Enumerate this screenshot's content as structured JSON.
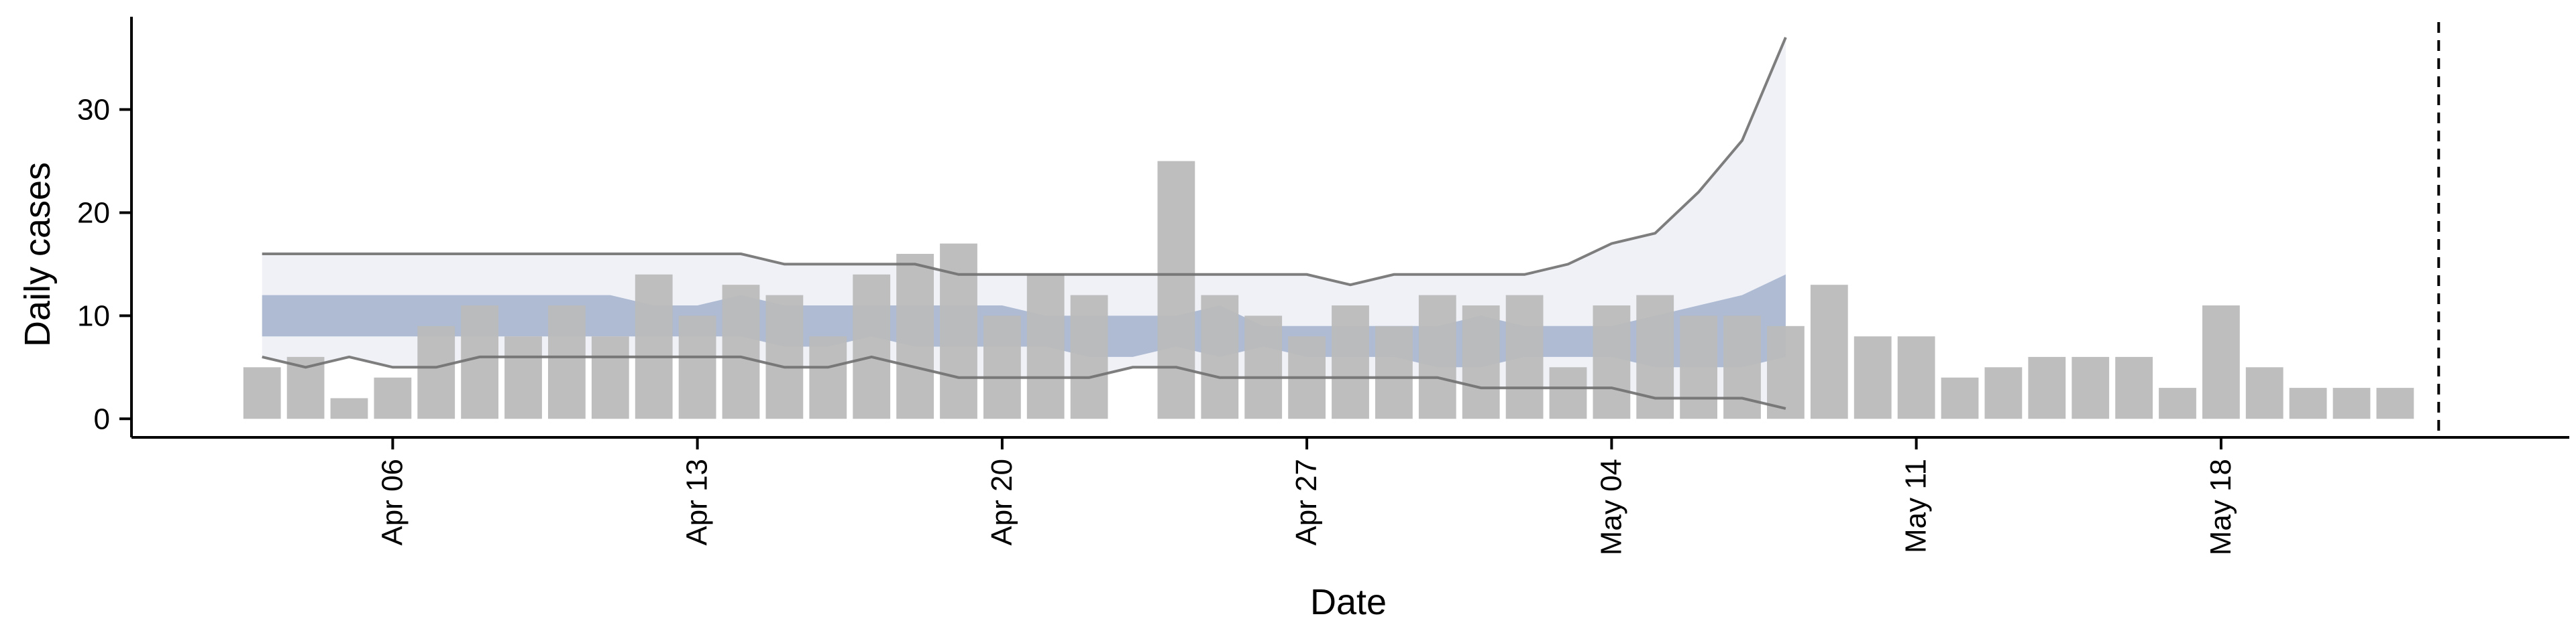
{
  "chart_data": {
    "type": "bar",
    "xlabel": "Date",
    "ylabel": "Daily cases",
    "xlim": [
      "2020-03-31",
      "2020-05-26"
    ],
    "ylim": [
      -1.8,
      39
    ],
    "grid": false,
    "legend": "none",
    "x_ticks": [
      {
        "date": "2020-04-06",
        "label": "Apr 06"
      },
      {
        "date": "2020-04-13",
        "label": "Apr 13"
      },
      {
        "date": "2020-04-20",
        "label": "Apr 20"
      },
      {
        "date": "2020-04-27",
        "label": "Apr 27"
      },
      {
        "date": "2020-05-04",
        "label": "May 04"
      },
      {
        "date": "2020-05-11",
        "label": "May 11"
      },
      {
        "date": "2020-05-18",
        "label": "May 18"
      }
    ],
    "y_ticks": [
      0,
      10,
      20,
      30
    ],
    "dates": [
      "2020-04-03",
      "2020-04-04",
      "2020-04-05",
      "2020-04-06",
      "2020-04-07",
      "2020-04-08",
      "2020-04-09",
      "2020-04-10",
      "2020-04-11",
      "2020-04-12",
      "2020-04-13",
      "2020-04-14",
      "2020-04-15",
      "2020-04-16",
      "2020-04-17",
      "2020-04-18",
      "2020-04-19",
      "2020-04-20",
      "2020-04-21",
      "2020-04-22",
      "2020-04-23",
      "2020-04-24",
      "2020-04-25",
      "2020-04-26",
      "2020-04-27",
      "2020-04-28",
      "2020-04-29",
      "2020-04-30",
      "2020-05-01",
      "2020-05-02",
      "2020-05-03",
      "2020-05-04",
      "2020-05-05",
      "2020-05-06",
      "2020-05-07",
      "2020-05-08",
      "2020-05-09",
      "2020-05-10",
      "2020-05-11",
      "2020-05-12",
      "2020-05-13",
      "2020-05-14",
      "2020-05-15",
      "2020-05-16",
      "2020-05-17",
      "2020-05-18",
      "2020-05-19",
      "2020-05-20",
      "2020-05-21",
      "2020-05-22"
    ],
    "values": [
      5,
      6,
      2,
      4,
      9,
      11,
      8,
      11,
      8,
      14,
      10,
      13,
      12,
      8,
      14,
      16,
      17,
      10,
      14,
      12,
      0,
      25,
      12,
      10,
      8,
      11,
      9,
      12,
      11,
      12,
      5,
      11,
      12,
      10,
      10,
      9,
      13,
      8,
      8,
      4,
      5,
      6,
      6,
      6,
      3,
      11,
      5,
      3,
      3,
      3
    ],
    "estimate_dates": [
      "2020-04-03",
      "2020-04-04",
      "2020-04-05",
      "2020-04-06",
      "2020-04-07",
      "2020-04-08",
      "2020-04-09",
      "2020-04-10",
      "2020-04-11",
      "2020-04-12",
      "2020-04-13",
      "2020-04-14",
      "2020-04-15",
      "2020-04-16",
      "2020-04-17",
      "2020-04-18",
      "2020-04-19",
      "2020-04-20",
      "2020-04-21",
      "2020-04-22",
      "2020-04-23",
      "2020-04-24",
      "2020-04-25",
      "2020-04-26",
      "2020-04-27",
      "2020-04-28",
      "2020-04-29",
      "2020-04-30",
      "2020-05-01",
      "2020-05-02",
      "2020-05-03",
      "2020-05-04",
      "2020-05-05",
      "2020-05-06",
      "2020-05-07",
      "2020-05-08",
      "2020-05-09"
    ],
    "outer_upper": [
      16,
      16,
      16,
      16,
      16,
      16,
      16,
      16,
      16,
      16,
      16,
      16,
      15,
      15,
      15,
      15,
      14,
      14,
      14,
      14,
      14,
      14,
      14,
      14,
      14,
      13,
      14,
      14,
      14,
      14,
      15,
      17,
      18,
      22,
      27,
      37,
      null
    ],
    "outer_lower": [
      6,
      5,
      6,
      5,
      5,
      6,
      6,
      6,
      6,
      6,
      6,
      6,
      5,
      5,
      6,
      5,
      4,
      4,
      4,
      4,
      5,
      5,
      4,
      4,
      4,
      4,
      4,
      4,
      3,
      3,
      3,
      3,
      2,
      2,
      2,
      1,
      null
    ],
    "inner_upper": [
      12,
      12,
      12,
      12,
      12,
      12,
      12,
      12,
      12,
      11,
      11,
      12,
      11,
      11,
      11,
      11,
      11,
      11,
      10,
      10,
      10,
      10,
      11,
      9,
      9,
      9,
      9,
      9,
      10,
      9,
      9,
      9,
      10,
      11,
      12,
      14,
      null
    ],
    "inner_lower": [
      8,
      8,
      8,
      8,
      8,
      8,
      8,
      8,
      8,
      8,
      8,
      8,
      7,
      7,
      8,
      7,
      7,
      7,
      7,
      6,
      6,
      7,
      6,
      7,
      6,
      6,
      6,
      5,
      5,
      6,
      6,
      6,
      5,
      5,
      5,
      6,
      null
    ],
    "vline_date": "2020-05-23",
    "colors": {
      "bars": "#bbbbbb",
      "outer_band": "#eff1f6",
      "inner_band": "#aebbd3",
      "bound_line": "#707070",
      "axis": "#000000",
      "vline": "#000000"
    }
  }
}
